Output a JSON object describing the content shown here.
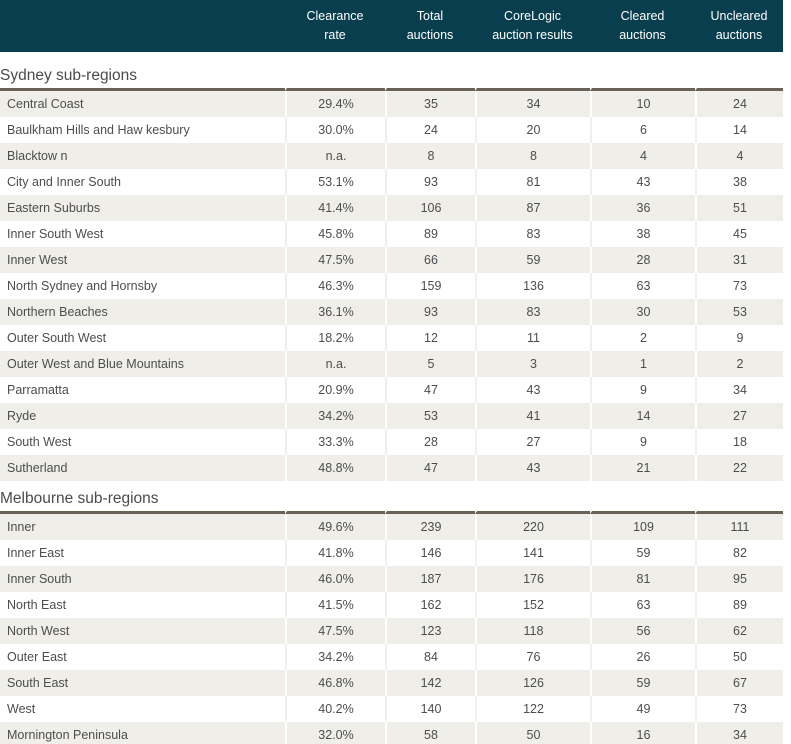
{
  "colors": {
    "header_background": "#093e4e",
    "header_text": "#ffffff",
    "row_stripe": "#f0eee8",
    "row_text": "#4c4d4f",
    "section_title_text": "#4b4b4d",
    "section_rule": "#6a6257"
  },
  "chart_data": {
    "type": "table",
    "columns": [
      "Clearance rate",
      "Total auctions",
      "CoreLogic auction results",
      "Cleared auctions",
      "Uncleared auctions"
    ],
    "header_labels": [
      "Clearance\nrate",
      "Total\nauctions",
      "CoreLogic\nauction results",
      "Cleared\nauctions",
      "Uncleared\nauctions"
    ],
    "sections": [
      {
        "title": "Sydney sub-regions",
        "rows": [
          {
            "region": "Central Coast",
            "values": [
              "29.4%",
              "35",
              "34",
              "10",
              "24"
            ]
          },
          {
            "region": "Baulkham Hills and Haw kesbury",
            "values": [
              "30.0%",
              "24",
              "20",
              "6",
              "14"
            ]
          },
          {
            "region": "Blacktow n",
            "values": [
              "n.a.",
              "8",
              "8",
              "4",
              "4"
            ]
          },
          {
            "region": "City and Inner South",
            "values": [
              "53.1%",
              "93",
              "81",
              "43",
              "38"
            ]
          },
          {
            "region": "Eastern Suburbs",
            "values": [
              "41.4%",
              "106",
              "87",
              "36",
              "51"
            ]
          },
          {
            "region": "Inner South West",
            "values": [
              "45.8%",
              "89",
              "83",
              "38",
              "45"
            ]
          },
          {
            "region": "Inner West",
            "values": [
              "47.5%",
              "66",
              "59",
              "28",
              "31"
            ]
          },
          {
            "region": "North Sydney and Hornsby",
            "values": [
              "46.3%",
              "159",
              "136",
              "63",
              "73"
            ]
          },
          {
            "region": "Northern Beaches",
            "values": [
              "36.1%",
              "93",
              "83",
              "30",
              "53"
            ]
          },
          {
            "region": "Outer South West",
            "values": [
              "18.2%",
              "12",
              "11",
              "2",
              "9"
            ]
          },
          {
            "region": "Outer West and Blue Mountains",
            "values": [
              "n.a.",
              "5",
              "3",
              "1",
              "2"
            ]
          },
          {
            "region": "Parramatta",
            "values": [
              "20.9%",
              "47",
              "43",
              "9",
              "34"
            ]
          },
          {
            "region": "Ryde",
            "values": [
              "34.2%",
              "53",
              "41",
              "14",
              "27"
            ]
          },
          {
            "region": "South West",
            "values": [
              "33.3%",
              "28",
              "27",
              "9",
              "18"
            ]
          },
          {
            "region": "Sutherland",
            "values": [
              "48.8%",
              "47",
              "43",
              "21",
              "22"
            ]
          }
        ]
      },
      {
        "title": "Melbourne sub-regions",
        "rows": [
          {
            "region": "Inner",
            "values": [
              "49.6%",
              "239",
              "220",
              "109",
              "111"
            ]
          },
          {
            "region": "Inner East",
            "values": [
              "41.8%",
              "146",
              "141",
              "59",
              "82"
            ]
          },
          {
            "region": "Inner South",
            "values": [
              "46.0%",
              "187",
              "176",
              "81",
              "95"
            ]
          },
          {
            "region": "North East",
            "values": [
              "41.5%",
              "162",
              "152",
              "63",
              "89"
            ]
          },
          {
            "region": "North West",
            "values": [
              "47.5%",
              "123",
              "118",
              "56",
              "62"
            ]
          },
          {
            "region": "Outer East",
            "values": [
              "34.2%",
              "84",
              "76",
              "26",
              "50"
            ]
          },
          {
            "region": "South East",
            "values": [
              "46.8%",
              "142",
              "126",
              "59",
              "67"
            ]
          },
          {
            "region": "West",
            "values": [
              "40.2%",
              "140",
              "122",
              "49",
              "73"
            ]
          },
          {
            "region": "Mornington Peninsula",
            "values": [
              "32.0%",
              "58",
              "50",
              "16",
              "34"
            ]
          }
        ]
      }
    ]
  }
}
